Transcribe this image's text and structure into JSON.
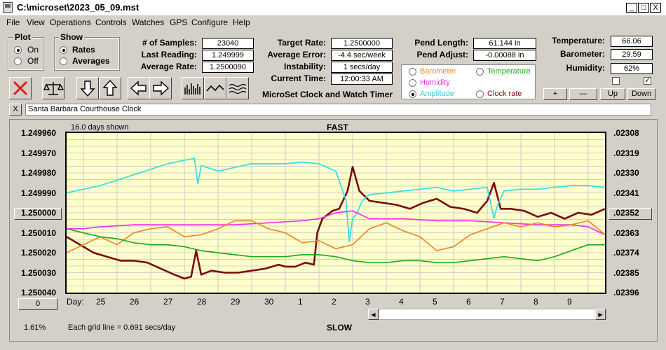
{
  "window": {
    "title": "C:\\microset\\2023_05_09.mst",
    "minimize": "_",
    "maximize": "□",
    "close": "X"
  },
  "menu": [
    "File",
    "View",
    "Operations",
    "Controls",
    "Watches",
    "GPS",
    "Configure",
    "Help"
  ],
  "plot_group": {
    "label": "Plot",
    "options": [
      "On",
      "Off"
    ],
    "selected": "On"
  },
  "show_group": {
    "label": "Show",
    "options": [
      "Rates",
      "Averages"
    ],
    "selected": "Rates"
  },
  "stats": {
    "samples_label": "# of Samples:",
    "samples": "23040",
    "last_label": "Last Reading:",
    "last": "1.249999",
    "avg_label": "Average Rate:",
    "avg": "1.2500090",
    "target_label": "Target Rate:",
    "target": "1.2500000",
    "avg_err_label": "Average Error:",
    "avg_err": "-4.4 sec/week",
    "instab_label": "Instability:",
    "instab": "1 secs/day",
    "time_label": "Current Time:",
    "time": "12:00:33 AM",
    "pend_len_label": "Pend Length:",
    "pend_len": "61.144 in",
    "pend_adj_label": "Pend Adjust:",
    "pend_adj": "-0.00088 in",
    "temp_label": "Temperature:",
    "temp": "66.06",
    "baro_label": "Barometer:",
    "baro": "29.59",
    "hum_label": "Humidity:",
    "hum": "62%"
  },
  "app_label": "MicroSet Clock and Watch Timer",
  "legend": {
    "barometer": "Barometer",
    "temperature": "Temperature",
    "humidity": "Humidity",
    "amplitude": "Amplitude",
    "clock_rate": "Clock rate",
    "selected": "Amplitude"
  },
  "adjust_buttons": {
    "plus": "+",
    "minus": "—",
    "up": "Up",
    "down": "Down"
  },
  "checkboxes": [
    {
      "checked": false
    },
    {
      "checked": true
    }
  ],
  "clock_name": {
    "close": "X",
    "value": "Santa Barbara Courthouse Clock"
  },
  "chart_header": {
    "days_shown": "16.0 days shown",
    "top": "FAST",
    "bottom": "SLOW"
  },
  "footer": {
    "percent": "1.61%",
    "grid_note": "Each grid line = 0.691 secs/day",
    "day_label": "Day:",
    "zero_button": "0"
  },
  "colors": {
    "plot_bg": "#ffffcc",
    "clock_rate": "#7a0c0c",
    "amplitude": "#33dde8",
    "humidity": "#ee33ee",
    "barometer": "#ee8822",
    "temperature": "#22aa22"
  },
  "chart_data": {
    "type": "line",
    "x_label": "Day:",
    "x_categories": [
      "25",
      "26",
      "27",
      "28",
      "29",
      "30",
      "1",
      "2",
      "3",
      "4",
      "5",
      "6",
      "7",
      "8",
      "9"
    ],
    "y_left_ticks": [
      "1.249960",
      "1.249970",
      "1.249980",
      "1.249990",
      "1.250000",
      "1.250010",
      "1.250020",
      "1.250030",
      "1.250040"
    ],
    "y_left_selected": "1.250000",
    "y_right_ticks": [
      ".02308",
      ".02319",
      ".02330",
      ".02341",
      ".02352",
      ".02363",
      ".02374",
      ".02385",
      ".02396"
    ],
    "y_right_selected": ".02352",
    "x_range_days": [
      24.0,
      40.0
    ],
    "grid": true,
    "series": [
      {
        "name": "Clock rate",
        "color": "#7a0c0c",
        "axis": "left",
        "x": [
          24.0,
          24.4,
          24.8,
          25.2,
          25.6,
          26.0,
          26.4,
          26.8,
          27.2,
          27.5,
          27.7,
          27.85,
          28.0,
          28.3,
          28.7,
          29.1,
          29.5,
          29.9,
          30.3,
          30.5,
          30.8,
          31.1,
          31.35,
          31.45,
          31.6,
          31.9,
          32.1,
          32.35,
          32.5,
          32.7,
          33.0,
          33.4,
          33.8,
          34.2,
          34.6,
          35.0,
          35.4,
          35.8,
          36.2,
          36.5,
          36.7,
          36.9,
          37.2,
          37.6,
          38.0,
          38.4,
          38.8,
          39.2,
          39.6,
          40.0
        ],
        "y": [
          1.250012,
          1.250016,
          1.25002,
          1.250022,
          1.250024,
          1.250024,
          1.250025,
          1.250028,
          1.250031,
          1.250033,
          1.250032,
          1.250019,
          1.250031,
          1.250029,
          1.25003,
          1.25003,
          1.250029,
          1.250028,
          1.250026,
          1.250027,
          1.250027,
          1.250025,
          1.250026,
          1.25001,
          1.250003,
          1.249999,
          1.249998,
          1.249989,
          1.249977,
          1.249989,
          1.249994,
          1.249995,
          1.249996,
          1.249998,
          1.249995,
          1.249993,
          1.249997,
          1.249998,
          1.25,
          1.249994,
          1.249985,
          1.249998,
          1.249998,
          1.249999,
          1.250002,
          1.25,
          1.250003,
          1.25,
          1.250001,
          1.249998
        ]
      },
      {
        "name": "Amplitude",
        "color": "#33dde8",
        "axis": "right",
        "x": [
          24.0,
          24.5,
          25.0,
          25.5,
          26.0,
          26.5,
          27.0,
          27.5,
          27.8,
          27.9,
          28.0,
          28.5,
          29.0,
          29.5,
          30.0,
          30.5,
          31.0,
          31.5,
          32.0,
          32.3,
          32.4,
          32.5,
          32.6,
          32.8,
          33.0,
          33.5,
          34.0,
          34.5,
          35.0,
          35.5,
          36.0,
          36.5,
          36.7,
          36.8,
          37.0,
          37.5,
          38.0,
          38.5,
          39.0,
          39.5,
          40.0
        ],
        "y": [
          0.02341,
          0.02339,
          0.02337,
          0.02334,
          0.02331,
          0.02328,
          0.02325,
          0.02323,
          0.02322,
          0.02336,
          0.02326,
          0.02329,
          0.02327,
          0.02325,
          0.02325,
          0.02325,
          0.02324,
          0.02325,
          0.02329,
          0.02345,
          0.02368,
          0.02355,
          0.02353,
          0.02345,
          0.02342,
          0.02341,
          0.0234,
          0.02339,
          0.02338,
          0.0234,
          0.02339,
          0.02338,
          0.02355,
          0.02348,
          0.0234,
          0.02339,
          0.02339,
          0.02338,
          0.02337,
          0.02337,
          0.02338
        ]
      },
      {
        "name": "Humidity",
        "color": "#ee33ee",
        "axis": "left",
        "x": [
          24.0,
          24.5,
          25.0,
          26.0,
          27.0,
          28.0,
          29.0,
          30.0,
          31.0,
          31.5,
          32.0,
          32.5,
          33.0,
          34.0,
          35.0,
          36.0,
          37.0,
          38.0,
          39.0,
          39.5,
          40.0
        ],
        "y": [
          1.250008,
          1.250008,
          1.250007,
          1.250006,
          1.250006,
          1.250006,
          1.250006,
          1.250005,
          1.250004,
          1.250003,
          1.25,
          1.249999,
          1.250003,
          1.250003,
          1.250004,
          1.250004,
          1.250005,
          1.250006,
          1.250006,
          1.250007,
          1.250011
        ]
      },
      {
        "name": "Barometer",
        "color": "#ee8822",
        "axis": "left",
        "x": [
          24.0,
          24.5,
          25.0,
          25.5,
          26.0,
          26.5,
          27.0,
          27.5,
          28.0,
          28.5,
          29.0,
          29.5,
          30.0,
          30.5,
          31.0,
          31.5,
          32.0,
          32.5,
          33.0,
          33.5,
          34.0,
          34.5,
          35.0,
          35.5,
          36.0,
          36.5,
          37.0,
          37.5,
          38.0,
          38.5,
          39.0,
          39.5,
          40.0
        ],
        "y": [
          1.25002,
          1.250016,
          1.250012,
          1.250016,
          1.25001,
          1.250008,
          1.250007,
          1.250012,
          1.250011,
          1.250008,
          1.250004,
          1.250004,
          1.250008,
          1.25001,
          1.250015,
          1.250014,
          1.250018,
          1.250016,
          1.250008,
          1.250005,
          1.250009,
          1.250012,
          1.250019,
          1.250017,
          1.250011,
          1.250008,
          1.250005,
          1.250007,
          1.250005,
          1.250007,
          1.250006,
          1.250004,
          1.250011
        ]
      },
      {
        "name": "Temperature",
        "color": "#22aa22",
        "axis": "left",
        "x": [
          24.0,
          24.5,
          25.0,
          25.5,
          26.0,
          26.5,
          27.0,
          27.5,
          28.0,
          28.5,
          29.0,
          29.5,
          30.0,
          30.5,
          31.0,
          31.5,
          32.0,
          32.5,
          33.0,
          33.5,
          34.0,
          34.5,
          35.0,
          35.5,
          36.0,
          36.5,
          37.0,
          37.5,
          38.0,
          38.5,
          39.0,
          39.5,
          40.0
        ],
        "y": [
          1.250008,
          1.25001,
          1.250012,
          1.250013,
          1.250015,
          1.250016,
          1.250016,
          1.250017,
          1.250019,
          1.25002,
          1.250021,
          1.250022,
          1.250022,
          1.250022,
          1.250021,
          1.250021,
          1.250022,
          1.250024,
          1.250025,
          1.250025,
          1.250024,
          1.250024,
          1.250025,
          1.250025,
          1.250024,
          1.250023,
          1.250022,
          1.250023,
          1.250024,
          1.250022,
          1.250019,
          1.250016,
          1.250016
        ]
      }
    ]
  }
}
